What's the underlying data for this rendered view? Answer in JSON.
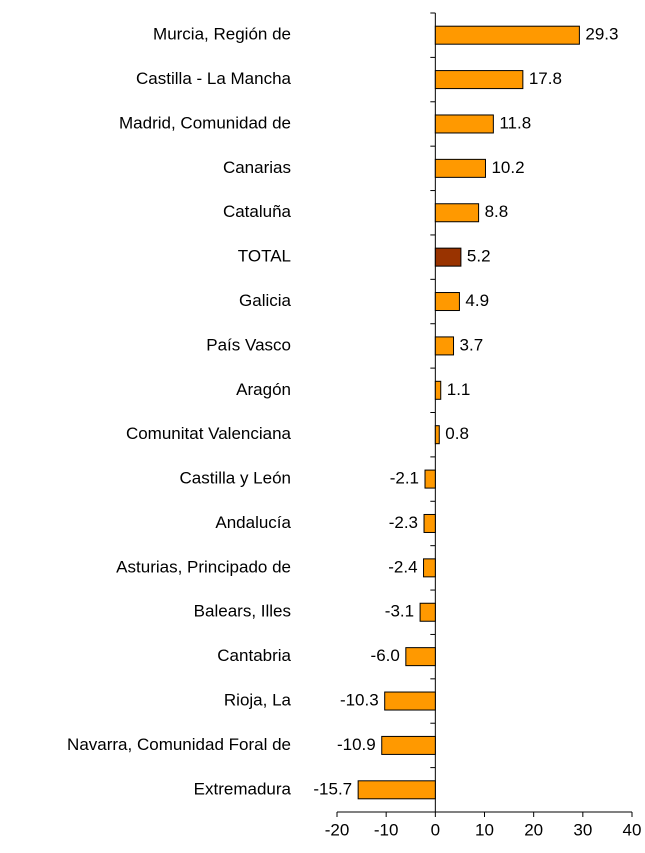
{
  "chart_data": {
    "type": "barh",
    "categories": [
      "Murcia, Región de",
      "Castilla - La Mancha",
      "Madrid, Comunidad de",
      "Canarias",
      "Cataluña",
      "TOTAL",
      "Galicia",
      "País Vasco",
      "Aragón",
      "Comunitat Valenciana",
      "Castilla y León",
      "Andalucía",
      "Asturias, Principado de",
      "Balears, Illes",
      "Cantabria",
      "Rioja, La",
      "Navarra, Comunidad Foral de",
      "Extremadura"
    ],
    "values": [
      29.3,
      17.8,
      11.8,
      10.2,
      8.8,
      5.2,
      4.9,
      3.7,
      1.1,
      0.8,
      -2.1,
      -2.3,
      -2.4,
      -3.1,
      -6.0,
      -10.3,
      -10.9,
      -15.7
    ],
    "value_labels": [
      "29.3",
      "17.8",
      "11.8",
      "10.2",
      "8.8",
      "5.2",
      "4.9",
      "3.7",
      "1.1",
      "0.8",
      "-2.1",
      "-2.3",
      "-2.4",
      "-3.1",
      "-6.0",
      "-10.3",
      "-10.9",
      "-15.7"
    ],
    "colors": [
      "#FF9900",
      "#FF9900",
      "#FF9900",
      "#FF9900",
      "#FF9900",
      "#993300",
      "#FF9900",
      "#FF9900",
      "#FF9900",
      "#FF9900",
      "#FF9900",
      "#FF9900",
      "#FF9900",
      "#FF9900",
      "#FF9900",
      "#FF9900",
      "#FF9900",
      "#FF9900"
    ],
    "xlim": [
      -20,
      40
    ],
    "xticks": [
      -20,
      -10,
      0,
      10,
      20,
      30,
      40
    ]
  }
}
